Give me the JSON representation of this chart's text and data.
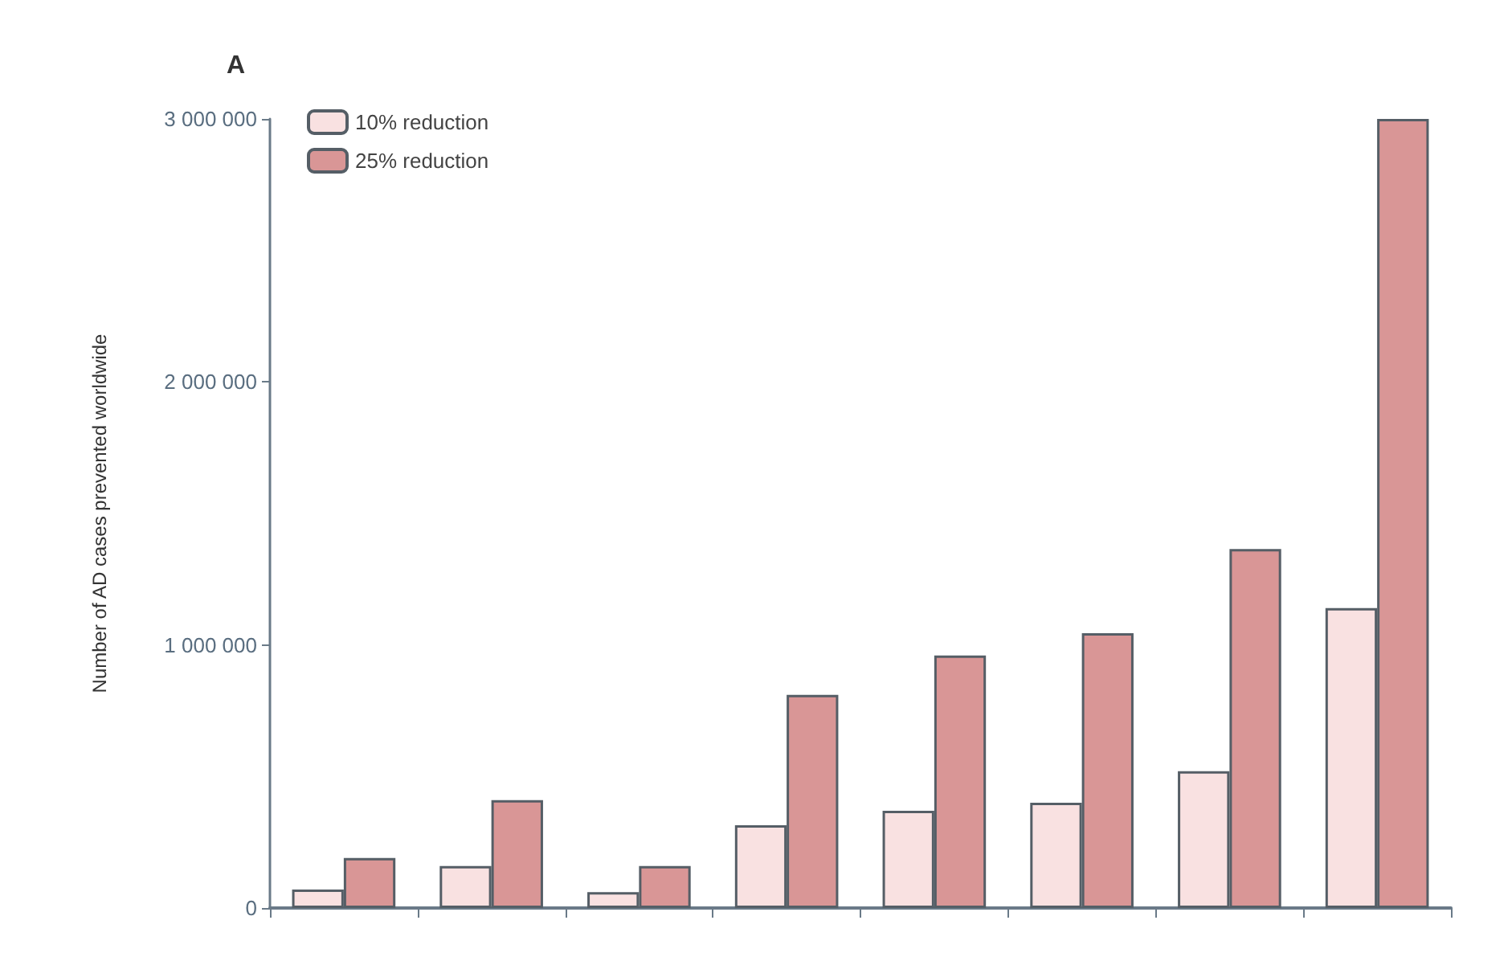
{
  "chart_data": {
    "type": "bar",
    "title": "A",
    "ylabel": "Number of AD cases prevented worldwide",
    "categories": [
      null,
      null,
      null,
      null,
      null,
      null,
      null,
      null
    ],
    "series": [
      {
        "name": "10% reduction",
        "color": "#f9e1e1",
        "values": [
          70000,
          160000,
          60000,
          315000,
          370000,
          400000,
          520000,
          1140000
        ]
      },
      {
        "name": "25% reduction",
        "color": "#d99696",
        "values": [
          190000,
          410000,
          160000,
          810000,
          960000,
          1045000,
          1365000,
          3000000
        ]
      }
    ],
    "ylim": [
      0,
      3000000
    ],
    "yticks": [
      {
        "value": 0,
        "label": "0"
      },
      {
        "value": 1000000,
        "label": "1 000 000"
      },
      {
        "value": 2000000,
        "label": "2 000 000"
      },
      {
        "value": 3000000,
        "label": "3 000 000"
      }
    ],
    "grid": false,
    "legend": "top left"
  }
}
